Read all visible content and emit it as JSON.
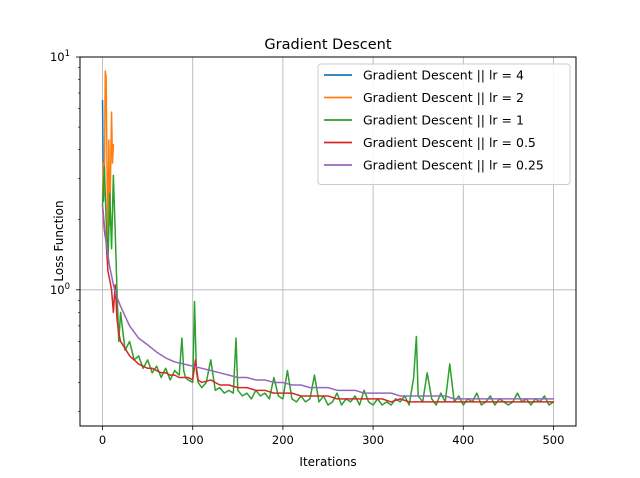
{
  "chart_data": {
    "type": "line",
    "title": "Gradient Descent",
    "xlabel": "Iterations",
    "ylabel": "Loss Function",
    "yscale": "log",
    "xlim": [
      -25,
      525
    ],
    "ylim": [
      0.26,
      10
    ],
    "xticks": [
      "0",
      "100",
      "200",
      "300",
      "400",
      "500"
    ],
    "yticks": [
      {
        "value": 1,
        "base": "10",
        "exp": "0"
      },
      {
        "value": 10,
        "base": "10",
        "exp": "1"
      }
    ],
    "grid": true,
    "legend_position": "top-right",
    "series": [
      {
        "name": "Gradient Descent || lr = 4",
        "color": "#1f77b4",
        "x": [
          0,
          1,
          2
        ],
        "y": [
          6.5,
          2.4,
          3.2
        ]
      },
      {
        "name": "Gradient Descent || lr = 2",
        "color": "#ff7f0e",
        "x": [
          0,
          1,
          2,
          3,
          4,
          5,
          6,
          7,
          8,
          9,
          10,
          11,
          12
        ],
        "y": [
          2.4,
          3.5,
          2.6,
          8.7,
          8.2,
          3.2,
          1.4,
          4.4,
          1.9,
          3.3,
          5.8,
          3.5,
          4.2
        ]
      },
      {
        "name": "Gradient Descent || lr = 1",
        "color": "#2ca02c",
        "x": [
          0,
          2,
          4,
          6,
          8,
          10,
          12,
          14,
          16,
          18,
          20,
          25,
          30,
          35,
          40,
          45,
          50,
          55,
          60,
          65,
          70,
          75,
          80,
          85,
          88,
          90,
          92,
          95,
          100,
          102,
          104,
          106,
          110,
          115,
          120,
          125,
          130,
          135,
          140,
          145,
          148,
          150,
          155,
          160,
          165,
          170,
          175,
          180,
          185,
          190,
          195,
          200,
          205,
          210,
          215,
          220,
          225,
          230,
          235,
          240,
          245,
          250,
          255,
          260,
          265,
          270,
          275,
          280,
          285,
          290,
          295,
          300,
          305,
          310,
          315,
          320,
          325,
          330,
          335,
          340,
          345,
          348,
          350,
          355,
          360,
          365,
          370,
          375,
          380,
          385,
          390,
          395,
          400,
          405,
          410,
          415,
          420,
          425,
          430,
          435,
          440,
          445,
          450,
          455,
          460,
          465,
          470,
          475,
          480,
          485,
          490,
          495,
          500
        ],
        "y": [
          2.3,
          3.4,
          2.0,
          1.3,
          2.6,
          1.5,
          3.1,
          1.8,
          1.0,
          0.6,
          0.8,
          0.55,
          0.6,
          0.5,
          0.52,
          0.46,
          0.5,
          0.44,
          0.47,
          0.42,
          0.46,
          0.41,
          0.45,
          0.43,
          0.62,
          0.45,
          0.42,
          0.41,
          0.4,
          0.89,
          0.45,
          0.4,
          0.38,
          0.4,
          0.5,
          0.37,
          0.38,
          0.36,
          0.37,
          0.36,
          0.62,
          0.37,
          0.35,
          0.36,
          0.34,
          0.37,
          0.35,
          0.36,
          0.34,
          0.42,
          0.35,
          0.34,
          0.45,
          0.34,
          0.33,
          0.35,
          0.33,
          0.34,
          0.43,
          0.33,
          0.35,
          0.32,
          0.33,
          0.36,
          0.32,
          0.34,
          0.33,
          0.35,
          0.32,
          0.37,
          0.33,
          0.32,
          0.34,
          0.32,
          0.33,
          0.32,
          0.34,
          0.33,
          0.35,
          0.32,
          0.42,
          0.63,
          0.35,
          0.33,
          0.44,
          0.34,
          0.32,
          0.36,
          0.33,
          0.48,
          0.33,
          0.35,
          0.32,
          0.34,
          0.33,
          0.36,
          0.32,
          0.33,
          0.35,
          0.32,
          0.34,
          0.33,
          0.32,
          0.33,
          0.36,
          0.33,
          0.34,
          0.32,
          0.34,
          0.33,
          0.35,
          0.32,
          0.33
        ]
      },
      {
        "name": "Gradient Descent || lr = 0.5",
        "color": "#d62728",
        "x": [
          0,
          2,
          4,
          6,
          8,
          10,
          12,
          14,
          16,
          18,
          20,
          25,
          30,
          35,
          40,
          45,
          50,
          55,
          60,
          65,
          70,
          75,
          80,
          85,
          90,
          95,
          100,
          103,
          106,
          110,
          120,
          130,
          140,
          150,
          160,
          170,
          180,
          190,
          200,
          210,
          220,
          230,
          240,
          250,
          260,
          270,
          280,
          290,
          300,
          310,
          320,
          330,
          340,
          350,
          360,
          370,
          380,
          390,
          400,
          410,
          420,
          430,
          440,
          450,
          460,
          470,
          480,
          490,
          500
        ],
        "y": [
          2.3,
          1.8,
          1.6,
          1.2,
          1.1,
          1.0,
          0.8,
          1.05,
          0.75,
          0.65,
          0.6,
          0.56,
          0.52,
          0.5,
          0.48,
          0.47,
          0.46,
          0.46,
          0.45,
          0.44,
          0.44,
          0.43,
          0.43,
          0.42,
          0.42,
          0.42,
          0.41,
          0.5,
          0.41,
          0.4,
          0.41,
          0.39,
          0.39,
          0.38,
          0.38,
          0.37,
          0.37,
          0.36,
          0.36,
          0.36,
          0.35,
          0.35,
          0.35,
          0.35,
          0.34,
          0.34,
          0.34,
          0.34,
          0.34,
          0.34,
          0.33,
          0.34,
          0.33,
          0.33,
          0.33,
          0.33,
          0.33,
          0.33,
          0.33,
          0.33,
          0.33,
          0.33,
          0.33,
          0.33,
          0.33,
          0.33,
          0.33,
          0.33,
          0.33
        ]
      },
      {
        "name": "Gradient Descent || lr = 0.25",
        "color": "#9467bd",
        "x": [
          0,
          2,
          4,
          6,
          8,
          10,
          12,
          15,
          20,
          25,
          30,
          40,
          50,
          60,
          70,
          80,
          90,
          100,
          110,
          120,
          130,
          140,
          150,
          160,
          170,
          180,
          190,
          200,
          210,
          220,
          230,
          240,
          250,
          260,
          270,
          280,
          290,
          300,
          310,
          320,
          330,
          340,
          350,
          360,
          370,
          380,
          390,
          400,
          410,
          420,
          430,
          440,
          450,
          460,
          470,
          480,
          490,
          500
        ],
        "y": [
          2.3,
          1.9,
          1.6,
          1.4,
          1.25,
          1.15,
          1.05,
          0.95,
          0.85,
          0.77,
          0.7,
          0.62,
          0.58,
          0.54,
          0.51,
          0.49,
          0.48,
          0.47,
          0.46,
          0.45,
          0.44,
          0.43,
          0.42,
          0.42,
          0.41,
          0.41,
          0.4,
          0.4,
          0.39,
          0.39,
          0.38,
          0.38,
          0.38,
          0.37,
          0.37,
          0.37,
          0.36,
          0.36,
          0.36,
          0.36,
          0.35,
          0.35,
          0.35,
          0.35,
          0.35,
          0.35,
          0.34,
          0.34,
          0.34,
          0.34,
          0.34,
          0.34,
          0.34,
          0.34,
          0.34,
          0.34,
          0.34,
          0.34
        ]
      }
    ]
  }
}
